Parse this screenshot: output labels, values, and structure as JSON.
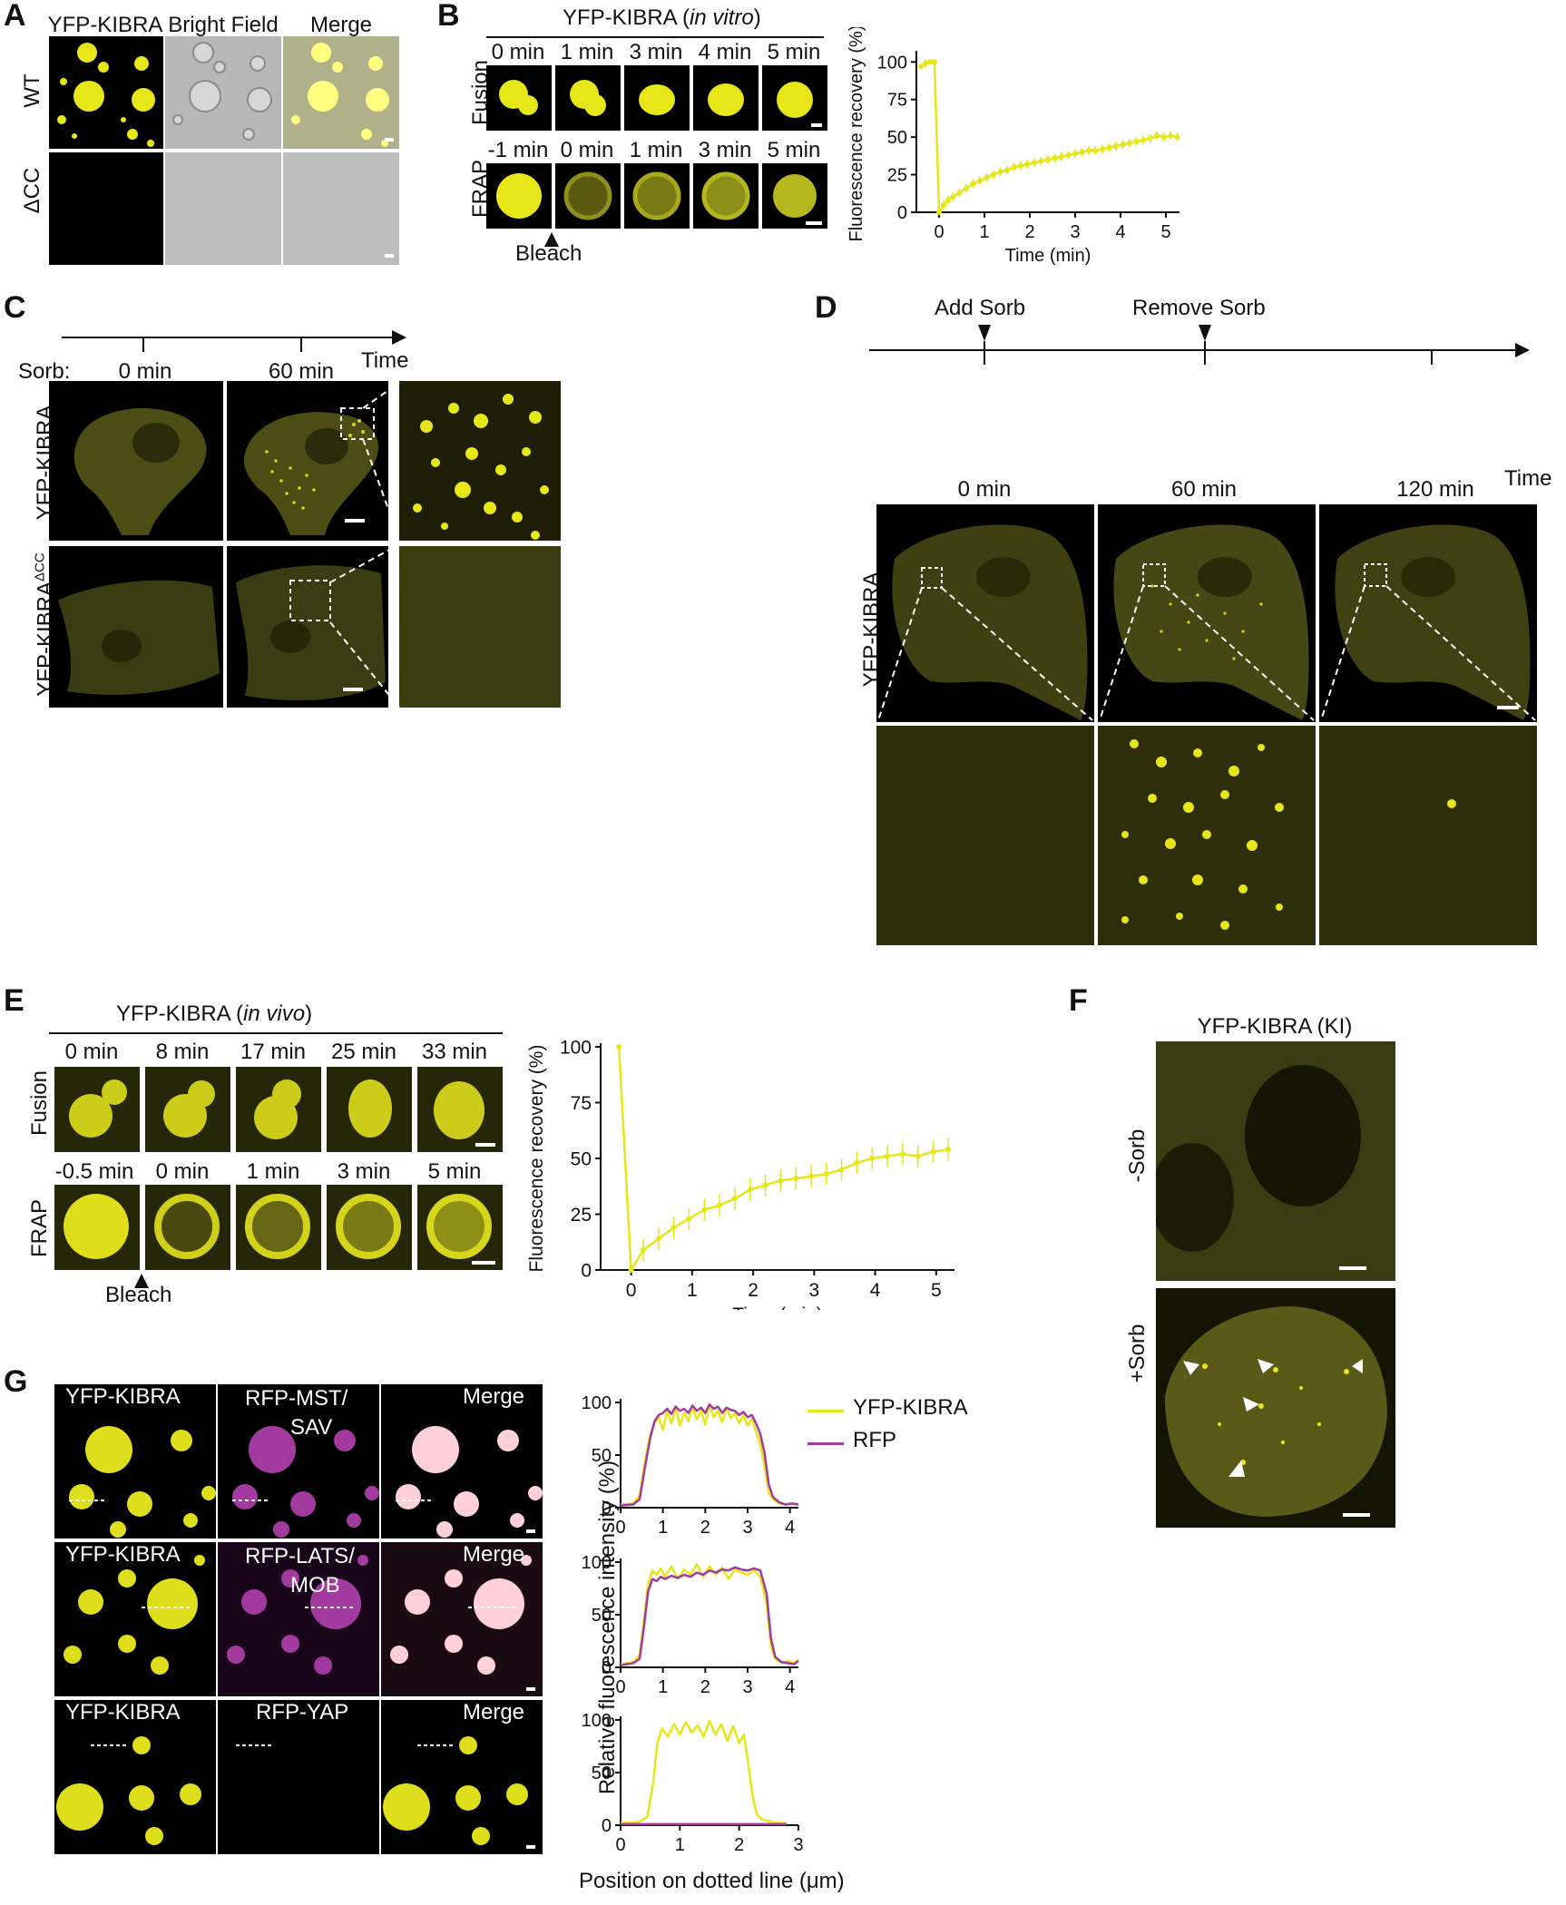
{
  "figure": {
    "panel_A": {
      "label": "A",
      "columns": [
        "YFP-KIBRA",
        "Bright Field",
        "Merge"
      ],
      "rows": [
        "WT",
        "ΔCC"
      ]
    },
    "panel_B": {
      "label": "B",
      "title_main": "YFP-KIBRA (",
      "title_italic": "in vitro",
      "title_end": ")",
      "fusion_label": "Fusion",
      "fusion_times": [
        "0 min",
        "1 min",
        "3 min",
        "4 min",
        "5 min"
      ],
      "frap_label": "FRAP",
      "frap_times": [
        "-1 min",
        "0 min",
        "1 min",
        "3 min",
        "5 min"
      ],
      "bleach_label": "Bleach"
    },
    "panel_C": {
      "label": "C",
      "time_label": "Time",
      "sorb_label": "Sorb:",
      "timepoints": [
        "0 min",
        "60 min"
      ],
      "rows": [
        "YFP-KIBRA",
        "YFP-KIBRA"
      ],
      "row2_sup": "ΔCC"
    },
    "panel_D": {
      "label": "D",
      "events": [
        "Add Sorb",
        "Remove Sorb"
      ],
      "time_label": "Time",
      "timepoints": [
        "0 min",
        "60 min",
        "120 min"
      ],
      "row_label": "YFP-KIBRA"
    },
    "panel_E": {
      "label": "E",
      "title_main": "YFP-KIBRA (",
      "title_italic": "in vivo",
      "title_end": ")",
      "fusion_label": "Fusion",
      "fusion_times": [
        "0 min",
        "8 min",
        "17 min",
        "25 min",
        "33 min"
      ],
      "frap_label": "FRAP",
      "frap_times": [
        "-0.5 min",
        "0 min",
        "1 min",
        "3 min",
        "5 min"
      ],
      "bleach_label": "Bleach"
    },
    "panel_F": {
      "label": "F",
      "title": "YFP-KIBRA (KI)",
      "rows": [
        "-Sorb",
        "+Sorb"
      ]
    },
    "panel_G": {
      "label": "G",
      "rows": [
        {
          "c1": "YFP-KIBRA",
          "c2a": "RFP-MST/",
          "c2b": "SAV",
          "c3": "Merge"
        },
        {
          "c1": "YFP-KIBRA",
          "c2a": "RFP-LATS/",
          "c2b": "MOB",
          "c3": "Merge"
        },
        {
          "c1": "YFP-KIBRA",
          "c2a": "RFP-YAP",
          "c2b": "",
          "c3": "Merge"
        }
      ],
      "legend": [
        "YFP-KIBRA",
        "RFP"
      ],
      "ylabel": "Relative fluorescence intensity (%)",
      "xlabel": "Position on dotted line (μm)"
    }
  },
  "colors": {
    "yfp": "#e6e619",
    "rfp": "#a23aa0",
    "merge": "#ffd0d8"
  },
  "chart_data": [
    {
      "id": "B-frap",
      "type": "line",
      "ylabel": "Fluorescence recovery (%)",
      "xlabel": "Time (min)",
      "xlim": [
        -0.5,
        5.3
      ],
      "ylim": [
        0,
        105
      ],
      "xticks": [
        0,
        1,
        2,
        3,
        4,
        5
      ],
      "yticks": [
        0,
        25,
        50,
        75,
        100
      ],
      "x": [
        -0.4,
        -0.3,
        -0.2,
        -0.1,
        0,
        0.1,
        0.2,
        0.3,
        0.45,
        0.6,
        0.75,
        0.9,
        1.05,
        1.2,
        1.35,
        1.5,
        1.65,
        1.8,
        1.95,
        2.1,
        2.25,
        2.4,
        2.55,
        2.7,
        2.85,
        3.0,
        3.15,
        3.3,
        3.45,
        3.6,
        3.75,
        3.9,
        4.05,
        4.2,
        4.35,
        4.5,
        4.65,
        4.8,
        4.95,
        5.1,
        5.25
      ],
      "y": [
        97,
        99,
        100,
        100,
        0,
        5,
        8,
        10,
        13,
        16,
        19,
        21,
        23,
        25,
        27,
        28,
        30,
        31,
        32,
        33,
        34,
        35,
        36,
        37,
        38,
        39,
        40,
        41,
        41,
        42,
        43,
        44,
        45,
        46,
        47,
        48,
        49,
        51,
        50,
        51,
        50
      ]
    },
    {
      "id": "E-frap",
      "type": "line",
      "ylabel": "Fluorescence recovery (%)",
      "xlabel": "Time (min)",
      "xlim": [
        -0.5,
        5.3
      ],
      "ylim": [
        0,
        100
      ],
      "xticks": [
        0,
        1,
        2,
        3,
        4,
        5
      ],
      "yticks": [
        0,
        25,
        50,
        75,
        100
      ],
      "x": [
        -0.2,
        0,
        0.2,
        0.45,
        0.7,
        0.95,
        1.2,
        1.45,
        1.7,
        1.95,
        2.2,
        2.45,
        2.7,
        2.95,
        3.2,
        3.45,
        3.7,
        3.95,
        4.2,
        4.45,
        4.7,
        4.95,
        5.2
      ],
      "y": [
        100,
        0,
        9,
        14,
        19,
        23,
        27,
        29,
        32,
        36,
        38,
        40,
        41,
        42,
        43,
        45,
        48,
        50,
        51,
        52,
        51,
        53,
        54
      ]
    },
    {
      "id": "G-mst",
      "type": "line",
      "xlim": [
        0,
        4.2
      ],
      "ylim": [
        0,
        100
      ],
      "xticks": [
        0,
        1,
        2,
        3,
        4
      ],
      "yticks": [
        0,
        50,
        100
      ],
      "series": [
        {
          "name": "YFP-KIBRA",
          "x": [
            0,
            0.3,
            0.45,
            0.6,
            0.7,
            0.8,
            0.9,
            1.0,
            1.1,
            1.2,
            1.3,
            1.4,
            1.5,
            1.6,
            1.7,
            1.8,
            1.9,
            2.0,
            2.1,
            2.2,
            2.3,
            2.4,
            2.5,
            2.6,
            2.7,
            2.8,
            2.9,
            3.0,
            3.1,
            3.2,
            3.3,
            3.4,
            3.5,
            3.6,
            3.75,
            3.9,
            4.05,
            4.2
          ],
          "y": [
            3,
            4,
            12,
            50,
            70,
            80,
            86,
            74,
            92,
            80,
            95,
            78,
            90,
            82,
            96,
            84,
            92,
            79,
            98,
            86,
            92,
            81,
            95,
            85,
            90,
            80,
            88,
            78,
            84,
            72,
            60,
            40,
            14,
            8,
            4,
            3,
            4,
            3
          ]
        },
        {
          "name": "RFP",
          "x": [
            0,
            0.3,
            0.45,
            0.6,
            0.7,
            0.8,
            0.9,
            1.0,
            1.1,
            1.2,
            1.3,
            1.4,
            1.5,
            1.6,
            1.7,
            1.8,
            1.9,
            2.0,
            2.1,
            2.2,
            2.3,
            2.4,
            2.5,
            2.6,
            2.7,
            2.8,
            2.9,
            3.0,
            3.1,
            3.2,
            3.3,
            3.4,
            3.5,
            3.6,
            3.75,
            3.9,
            4.05,
            4.2
          ],
          "y": [
            2,
            3,
            8,
            44,
            66,
            82,
            88,
            90,
            94,
            89,
            96,
            92,
            94,
            90,
            97,
            92,
            95,
            90,
            98,
            94,
            96,
            90,
            95,
            93,
            92,
            88,
            91,
            86,
            88,
            80,
            70,
            52,
            22,
            10,
            5,
            3,
            4,
            3
          ]
        }
      ]
    },
    {
      "id": "G-lats",
      "type": "line",
      "xlim": [
        0,
        4.2
      ],
      "ylim": [
        0,
        100
      ],
      "xticks": [
        0,
        1,
        2,
        3,
        4
      ],
      "yticks": [
        0,
        50,
        100
      ],
      "series": [
        {
          "name": "YFP-KIBRA",
          "x": [
            0,
            0.3,
            0.45,
            0.55,
            0.65,
            0.75,
            0.85,
            0.95,
            1.05,
            1.2,
            1.35,
            1.5,
            1.65,
            1.8,
            1.95,
            2.1,
            2.25,
            2.4,
            2.55,
            2.7,
            2.85,
            3.0,
            3.15,
            3.3,
            3.45,
            3.55,
            3.65,
            3.8,
            3.95,
            4.1,
            4.2
          ],
          "y": [
            3,
            5,
            12,
            45,
            80,
            92,
            88,
            94,
            86,
            96,
            84,
            93,
            88,
            98,
            86,
            96,
            88,
            95,
            84,
            93,
            90,
            88,
            92,
            86,
            60,
            20,
            8,
            4,
            6,
            4,
            8
          ]
        },
        {
          "name": "RFP",
          "x": [
            0,
            0.3,
            0.45,
            0.55,
            0.65,
            0.75,
            0.85,
            0.95,
            1.05,
            1.2,
            1.35,
            1.5,
            1.65,
            1.8,
            1.95,
            2.1,
            2.25,
            2.4,
            2.55,
            2.7,
            2.85,
            3.0,
            3.15,
            3.3,
            3.45,
            3.55,
            3.65,
            3.8,
            3.95,
            4.1,
            4.2
          ],
          "y": [
            2,
            4,
            8,
            38,
            72,
            84,
            82,
            86,
            84,
            87,
            85,
            88,
            86,
            90,
            88,
            92,
            90,
            93,
            92,
            95,
            93,
            92,
            94,
            92,
            70,
            28,
            10,
            5,
            4,
            3,
            6
          ]
        }
      ]
    },
    {
      "id": "G-yap",
      "type": "line",
      "xlim": [
        0,
        3
      ],
      "ylim": [
        0,
        100
      ],
      "xticks": [
        0,
        1,
        2,
        3
      ],
      "yticks": [
        0,
        50,
        100
      ],
      "series": [
        {
          "name": "YFP-KIBRA",
          "x": [
            0,
            0.3,
            0.45,
            0.55,
            0.62,
            0.7,
            0.8,
            0.9,
            1.0,
            1.1,
            1.2,
            1.3,
            1.4,
            1.5,
            1.6,
            1.7,
            1.8,
            1.9,
            2.0,
            2.08,
            2.15,
            2.22,
            2.3,
            2.4,
            2.55,
            2.7,
            2.8
          ],
          "y": [
            2,
            3,
            8,
            40,
            78,
            92,
            84,
            96,
            86,
            98,
            88,
            95,
            84,
            99,
            86,
            96,
            80,
            94,
            78,
            86,
            60,
            30,
            10,
            5,
            3,
            2,
            2
          ]
        },
        {
          "name": "RFP",
          "x": [
            0,
            0.5,
            1,
            1.5,
            2,
            2.5,
            2.8
          ],
          "y": [
            1,
            1,
            1,
            1,
            1,
            1,
            1
          ]
        }
      ]
    }
  ]
}
